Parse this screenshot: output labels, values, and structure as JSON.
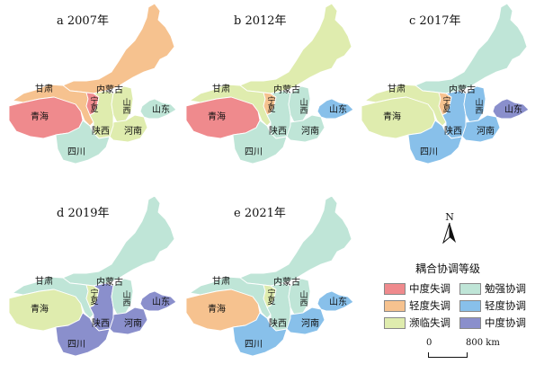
{
  "legend": {
    "title": "耦合协调等级",
    "classes": [
      {
        "label": "中度失调",
        "color": "#ef8a8d"
      },
      {
        "label": "勉强协调",
        "color": "#bfe5d7"
      },
      {
        "label": "轻度失调",
        "color": "#f6c28f"
      },
      {
        "label": "轻度协调",
        "color": "#88c0ea"
      },
      {
        "label": "濒临失调",
        "color": "#dfecae"
      },
      {
        "label": "中度协调",
        "color": "#8a8fcc"
      }
    ]
  },
  "north_label": "N",
  "scale": {
    "zero": "0",
    "max": "800 km"
  },
  "province_names": {
    "gansu": "甘肃",
    "neimenggu": "内蒙古",
    "qinghai": "青海",
    "ningxia": "宁夏",
    "shanxi": "山西",
    "shandong": "山东",
    "shaanxi": "陕西",
    "henan": "河南",
    "sichuan": "四川"
  },
  "panels": [
    {
      "title": "a 2007年",
      "classes": {
        "qinghai": "中度失调",
        "gansu": "轻度失调",
        "neimenggu": "轻度失调",
        "ningxia": "中度失调",
        "shaanxi": "濒临失调",
        "shanxi": "濒临失调",
        "henan": "濒临失调",
        "shandong": "勉强协调",
        "sichuan": "勉强协调"
      }
    },
    {
      "title": "b 2012年",
      "classes": {
        "qinghai": "中度失调",
        "gansu": "濒临失调",
        "neimenggu": "濒临失调",
        "ningxia": "轻度失调",
        "shaanxi": "勉强协调",
        "shanxi": "勉强协调",
        "henan": "勉强协调",
        "shandong": "轻度协调",
        "sichuan": "勉强协调"
      }
    },
    {
      "title": "c 2017年",
      "classes": {
        "qinghai": "濒临失调",
        "gansu": "濒临失调",
        "neimenggu": "勉强协调",
        "ningxia": "轻度失调",
        "shaanxi": "轻度协调",
        "shanxi": "轻度协调",
        "henan": "轻度协调",
        "shandong": "中度协调",
        "sichuan": "轻度协调"
      }
    },
    {
      "title": "d 2019年",
      "classes": {
        "qinghai": "濒临失调",
        "gansu": "勉强协调",
        "neimenggu": "勉强协调",
        "ningxia": "濒临失调",
        "shaanxi": "中度协调",
        "shanxi": "勉强协调",
        "henan": "中度协调",
        "shandong": "中度协调",
        "sichuan": "中度协调"
      }
    },
    {
      "title": "e 2021年",
      "classes": {
        "qinghai": "轻度失调",
        "gansu": "勉强协调",
        "neimenggu": "勉强协调",
        "ningxia": "濒临失调",
        "shaanxi": "勉强协调",
        "shanxi": "勉强协调",
        "henan": "轻度协调",
        "shandong": "轻度协调",
        "sichuan": "轻度协调"
      }
    }
  ]
}
